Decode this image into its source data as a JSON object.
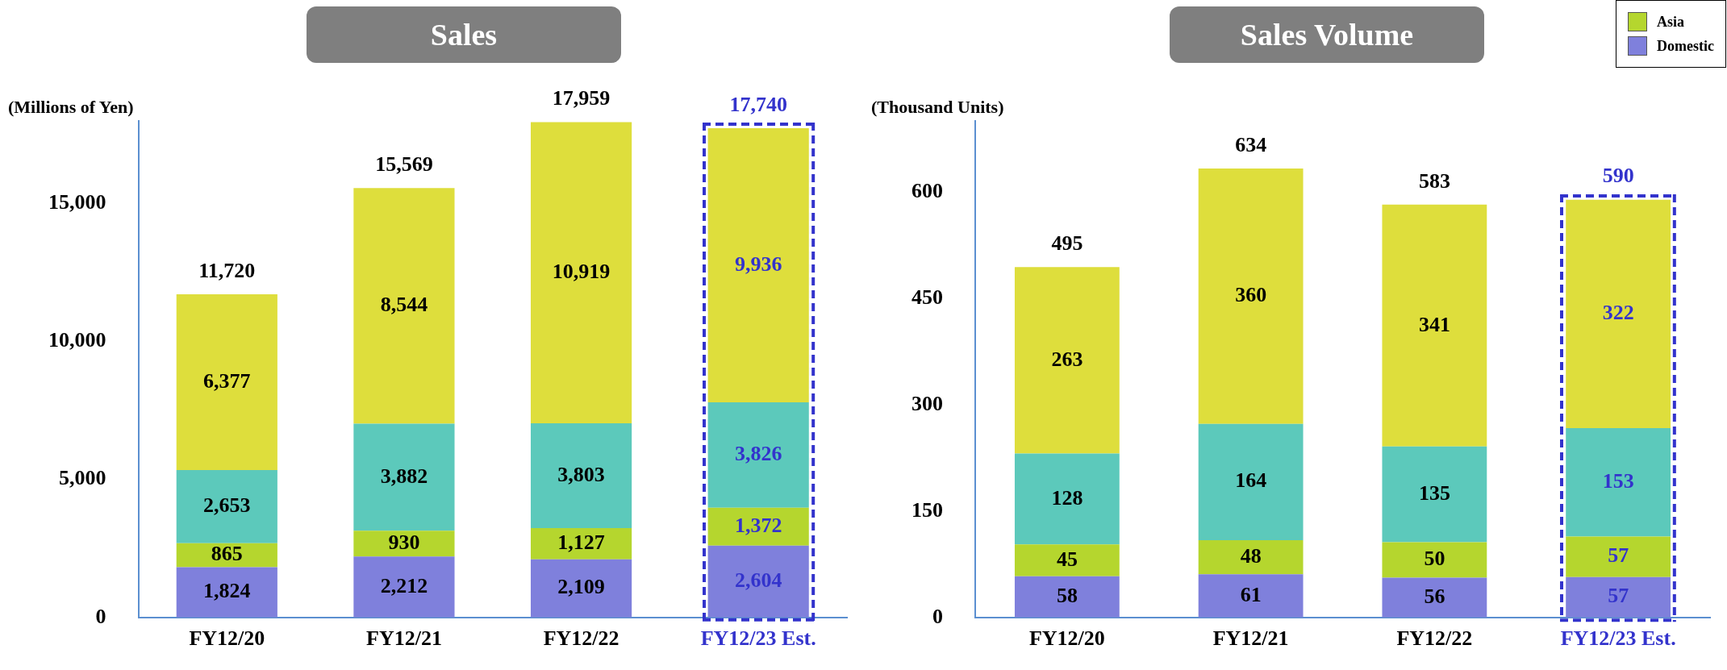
{
  "chart_data": [
    {
      "type": "bar",
      "title": "Sales",
      "ylabel": "(Millions of Yen)",
      "categories": [
        "FY12/20",
        "FY12/21",
        "FY12/22",
        "FY12/23 Est."
      ],
      "stacked": true,
      "legend": false,
      "grid": false,
      "ylim": [
        0,
        18000
      ],
      "yticks": [
        0,
        {
          "value": 5000,
          "label": "5,000"
        },
        {
          "value": 10000,
          "label": "10,000"
        },
        {
          "value": 15000,
          "label": "15,000"
        }
      ],
      "series": [
        {
          "color": "#7f80dc",
          "values": [
            1824,
            2212,
            2109,
            2604
          ],
          "value_labels": [
            "1,824",
            "2,212",
            "2,109",
            "2,604"
          ]
        },
        {
          "color": "#b5d62e",
          "values": [
            865,
            930,
            1127,
            1372
          ],
          "value_labels": [
            "865",
            "930",
            "1,127",
            "1,372"
          ]
        },
        {
          "color": "#5cc9bb",
          "values": [
            2653,
            3882,
            3803,
            3826
          ],
          "value_labels": [
            "2,653",
            "3,882",
            "3,803",
            "3,826"
          ]
        },
        {
          "color": "#dede3c",
          "values": [
            6377,
            8544,
            10919,
            9936
          ],
          "value_labels": [
            "6,377",
            "8,544",
            "10,919",
            "9,936"
          ]
        }
      ],
      "totals": [
        "11,720",
        "15,569",
        "17,959",
        "17,740"
      ]
    },
    {
      "type": "bar",
      "title": "Sales Volume",
      "ylabel": "(Thousand Units)",
      "categories": [
        "FY12/20",
        "FY12/21",
        "FY12/22",
        "FY12/23 Est."
      ],
      "stacked": true,
      "data_labels": true,
      "legend": "top right",
      "grid": false,
      "ylim": [
        0,
        700
      ],
      "yticks": [
        0,
        150,
        300,
        450,
        600
      ],
      "series": [
        {
          "name": "Domestic",
          "color": "#7f80dc",
          "values": [
            58,
            61,
            56,
            57
          ]
        },
        {
          "name": "Asia",
          "color": "#b5d62e",
          "values": [
            45,
            48,
            50,
            57
          ]
        },
        {
          "color": "#5cc9bb",
          "values": [
            128,
            164,
            135,
            153
          ]
        },
        {
          "color": "#dede3c",
          "values": [
            263,
            360,
            341,
            322
          ]
        }
      ],
      "totals": [
        "495",
        "634",
        "583",
        "590"
      ]
    }
  ]
}
